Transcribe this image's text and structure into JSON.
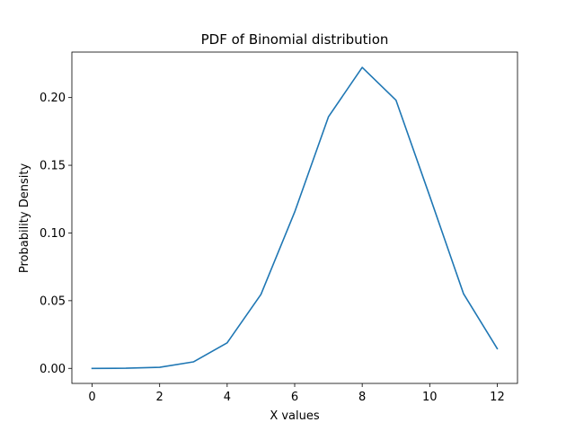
{
  "chart_data": {
    "type": "line",
    "title": "PDF of Binomial distribution",
    "xlabel": "X values",
    "ylabel": "Probability Density",
    "xlim": [
      -0.6,
      12.6
    ],
    "ylim": [
      -0.0111,
      0.2336
    ],
    "x_ticks": [
      0,
      2,
      4,
      6,
      8,
      10,
      12
    ],
    "x_tick_labels": [
      "0",
      "2",
      "4",
      "6",
      "8",
      "10",
      "12"
    ],
    "y_ticks": [
      0.0,
      0.05,
      0.1,
      0.15,
      0.2
    ],
    "y_tick_labels": [
      "0.00",
      "0.05",
      "0.10",
      "0.15",
      "0.20"
    ],
    "grid": false,
    "series": [
      {
        "color": "#1f77b4",
        "x": [
          0,
          1,
          2,
          3,
          4,
          5,
          6,
          7,
          8,
          9,
          10,
          11,
          12
        ],
        "values": [
          0.0,
          0.0001,
          0.0008,
          0.0048,
          0.0189,
          0.0546,
          0.1155,
          0.1858,
          0.2223,
          0.1981,
          0.1272,
          0.0552,
          0.0146
        ]
      }
    ]
  }
}
